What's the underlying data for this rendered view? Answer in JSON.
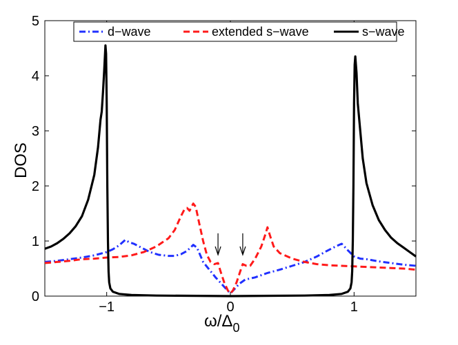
{
  "chart_data": {
    "type": "line",
    "xlabel": {
      "main": "ω/Δ",
      "sub": "0"
    },
    "ylabel": "DOS",
    "xlim": [
      -1.5,
      1.5
    ],
    "ylim": [
      0,
      5
    ],
    "xticks": [
      {
        "v": -1,
        "label": "−1"
      },
      {
        "v": 0,
        "label": "0"
      },
      {
        "v": 1,
        "label": "1"
      }
    ],
    "yticks": [
      {
        "v": 0,
        "label": "0"
      },
      {
        "v": 1,
        "label": "1"
      },
      {
        "v": 2,
        "label": "2"
      },
      {
        "v": 3,
        "label": "3"
      },
      {
        "v": 4,
        "label": "4"
      },
      {
        "v": 5,
        "label": "5"
      }
    ],
    "legend_position": "top",
    "annotations": [
      {
        "type": "arrow",
        "x": -0.1,
        "y_top": 1.14,
        "y_bottom": 0.75
      },
      {
        "type": "arrow",
        "x": 0.1,
        "y_top": 1.14,
        "y_bottom": 0.75
      }
    ],
    "series": [
      {
        "name": "d−wave",
        "color": "#2030ff",
        "style": "dashdot",
        "points": [
          [
            -1.5,
            0.62
          ],
          [
            -1.4,
            0.64
          ],
          [
            -1.3,
            0.67
          ],
          [
            -1.2,
            0.7
          ],
          [
            -1.1,
            0.74
          ],
          [
            -1.0,
            0.8
          ],
          [
            -0.95,
            0.85
          ],
          [
            -0.9,
            0.92
          ],
          [
            -0.85,
            1.02
          ],
          [
            -0.82,
            0.98
          ],
          [
            -0.78,
            0.95
          ],
          [
            -0.72,
            0.88
          ],
          [
            -0.65,
            0.8
          ],
          [
            -0.58,
            0.75
          ],
          [
            -0.5,
            0.73
          ],
          [
            -0.45,
            0.73
          ],
          [
            -0.4,
            0.76
          ],
          [
            -0.35,
            0.82
          ],
          [
            -0.3,
            0.93
          ],
          [
            -0.27,
            0.88
          ],
          [
            -0.22,
            0.62
          ],
          [
            -0.17,
            0.48
          ],
          [
            -0.12,
            0.34
          ],
          [
            -0.07,
            0.22
          ],
          [
            -0.03,
            0.12
          ],
          [
            0.0,
            0.05
          ],
          [
            0.03,
            0.12
          ],
          [
            0.07,
            0.22
          ],
          [
            0.12,
            0.3
          ],
          [
            0.2,
            0.34
          ],
          [
            0.3,
            0.42
          ],
          [
            0.4,
            0.48
          ],
          [
            0.5,
            0.55
          ],
          [
            0.6,
            0.62
          ],
          [
            0.7,
            0.72
          ],
          [
            0.78,
            0.82
          ],
          [
            0.85,
            0.9
          ],
          [
            0.9,
            0.95
          ],
          [
            0.95,
            0.83
          ],
          [
            1.0,
            0.72
          ],
          [
            1.05,
            0.68
          ],
          [
            1.1,
            0.67
          ],
          [
            1.2,
            0.63
          ],
          [
            1.3,
            0.6
          ],
          [
            1.4,
            0.57
          ],
          [
            1.5,
            0.55
          ]
        ]
      },
      {
        "name": "extended s−wave",
        "color": "#ff1a1a",
        "style": "dashed",
        "points": [
          [
            -1.5,
            0.6
          ],
          [
            -1.4,
            0.62
          ],
          [
            -1.3,
            0.64
          ],
          [
            -1.2,
            0.67
          ],
          [
            -1.1,
            0.68
          ],
          [
            -1.0,
            0.7
          ],
          [
            -0.9,
            0.71
          ],
          [
            -0.8,
            0.74
          ],
          [
            -0.7,
            0.8
          ],
          [
            -0.6,
            0.9
          ],
          [
            -0.5,
            1.05
          ],
          [
            -0.45,
            1.2
          ],
          [
            -0.4,
            1.45
          ],
          [
            -0.37,
            1.58
          ],
          [
            -0.35,
            1.6
          ],
          [
            -0.33,
            1.55
          ],
          [
            -0.3,
            1.68
          ],
          [
            -0.28,
            1.62
          ],
          [
            -0.25,
            1.3
          ],
          [
            -0.22,
            1.0
          ],
          [
            -0.19,
            0.75
          ],
          [
            -0.16,
            0.62
          ],
          [
            -0.13,
            0.58
          ],
          [
            -0.1,
            0.6
          ],
          [
            -0.08,
            0.45
          ],
          [
            -0.05,
            0.25
          ],
          [
            -0.02,
            0.1
          ],
          [
            0.0,
            0.05
          ],
          [
            0.02,
            0.1
          ],
          [
            0.05,
            0.25
          ],
          [
            0.08,
            0.45
          ],
          [
            0.1,
            0.58
          ],
          [
            0.13,
            0.55
          ],
          [
            0.16,
            0.55
          ],
          [
            0.2,
            0.68
          ],
          [
            0.25,
            0.9
          ],
          [
            0.28,
            1.1
          ],
          [
            0.3,
            1.25
          ],
          [
            0.32,
            1.1
          ],
          [
            0.35,
            0.9
          ],
          [
            0.4,
            0.78
          ],
          [
            0.5,
            0.68
          ],
          [
            0.6,
            0.62
          ],
          [
            0.7,
            0.58
          ],
          [
            0.8,
            0.56
          ],
          [
            0.9,
            0.55
          ],
          [
            1.0,
            0.54
          ],
          [
            1.1,
            0.53
          ],
          [
            1.2,
            0.52
          ],
          [
            1.3,
            0.51
          ],
          [
            1.4,
            0.5
          ],
          [
            1.5,
            0.48
          ]
        ]
      },
      {
        "name": "s−wave",
        "color": "#000000",
        "style": "solid",
        "points": [
          [
            -1.5,
            0.86
          ],
          [
            -1.45,
            0.9
          ],
          [
            -1.4,
            0.96
          ],
          [
            -1.35,
            1.04
          ],
          [
            -1.3,
            1.14
          ],
          [
            -1.25,
            1.27
          ],
          [
            -1.2,
            1.45
          ],
          [
            -1.15,
            1.75
          ],
          [
            -1.1,
            2.2
          ],
          [
            -1.07,
            2.7
          ],
          [
            -1.05,
            3.2
          ],
          [
            -1.04,
            3.35
          ],
          [
            -1.03,
            3.7
          ],
          [
            -1.02,
            4.1
          ],
          [
            -1.01,
            4.55
          ],
          [
            -1.005,
            4.4
          ],
          [
            -1.0,
            3.5
          ],
          [
            -0.995,
            2.0
          ],
          [
            -0.99,
            1.0
          ],
          [
            -0.985,
            0.45
          ],
          [
            -0.98,
            0.25
          ],
          [
            -0.97,
            0.14
          ],
          [
            -0.95,
            0.08
          ],
          [
            -0.9,
            0.04
          ],
          [
            -0.8,
            0.02
          ],
          [
            -0.6,
            0.01
          ],
          [
            0.0,
            0.0
          ],
          [
            0.6,
            0.01
          ],
          [
            0.8,
            0.02
          ],
          [
            0.9,
            0.04
          ],
          [
            0.95,
            0.08
          ],
          [
            0.97,
            0.14
          ],
          [
            0.98,
            0.25
          ],
          [
            0.985,
            0.45
          ],
          [
            0.99,
            1.0
          ],
          [
            0.995,
            2.0
          ],
          [
            1.0,
            3.5
          ],
          [
            1.005,
            4.2
          ],
          [
            1.01,
            4.35
          ],
          [
            1.02,
            4.05
          ],
          [
            1.03,
            3.5
          ],
          [
            1.05,
            3.0
          ],
          [
            1.07,
            2.5
          ],
          [
            1.1,
            2.05
          ],
          [
            1.15,
            1.65
          ],
          [
            1.2,
            1.38
          ],
          [
            1.25,
            1.2
          ],
          [
            1.3,
            1.06
          ],
          [
            1.35,
            0.96
          ],
          [
            1.4,
            0.88
          ],
          [
            1.45,
            0.8
          ],
          [
            1.5,
            0.72
          ]
        ]
      }
    ]
  }
}
